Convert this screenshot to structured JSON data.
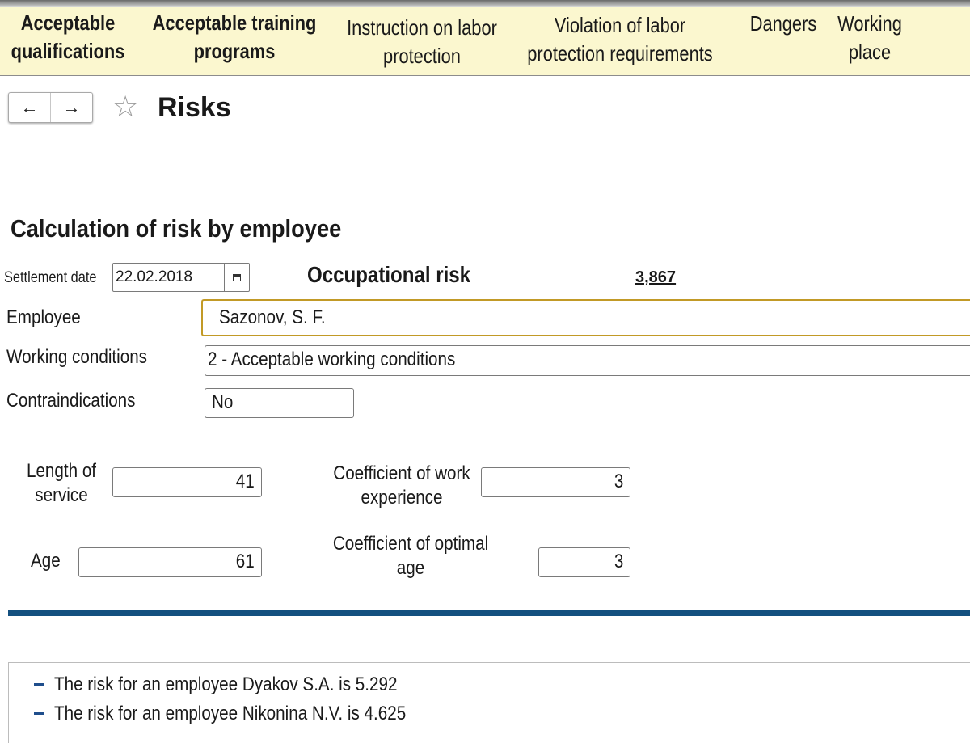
{
  "tabs": [
    {
      "label_1": "Acceptable",
      "label_2": "qualifications"
    },
    {
      "label_1": "Acceptable training",
      "label_2": "programs"
    },
    {
      "label_1": "Instruction on labor",
      "label_2": "protection"
    },
    {
      "label_1": "Violation of labor",
      "label_2": "protection requirements"
    },
    {
      "label_1": "Dangers",
      "label_2": ""
    },
    {
      "label_1": "Working",
      "label_2": "place"
    }
  ],
  "header": {
    "back_glyph": "←",
    "forward_glyph": "→",
    "favorite_glyph": "☆",
    "title": "Risks"
  },
  "form": {
    "section_title": "Calculation of risk by employee",
    "settlement_date_label": "Settlement date",
    "settlement_date_value": "22.02.2018",
    "occupational_risk_label": "Occupational risk",
    "occupational_risk_value": "3,867",
    "employee_label": "Employee",
    "employee_value": "Sazonov, S. F.",
    "working_conditions_label": "Working conditions",
    "working_conditions_value": "2 - Acceptable working conditions",
    "contraindications_label": "Contraindications",
    "contraindications_value": "No",
    "length_of_service_label_1": "Length of",
    "length_of_service_label_2": "service",
    "length_of_service_value": "41",
    "coef_work_experience_label_1": "Coefficient of work",
    "coef_work_experience_label_2": "experience",
    "coef_work_experience_value": "3",
    "age_label": "Age",
    "age_value": "61",
    "coef_optimal_age_label_1": "Coefficient of optimal",
    "coef_optimal_age_label_2": "age",
    "coef_optimal_age_value": "3"
  },
  "messages": [
    "The risk for an employee Dyakov S.A. is 5.292",
    "The risk for an employee Nikonina N.V. is 4.625"
  ],
  "colors": {
    "tabbar_bg": "#fbf7cf",
    "focus_border": "#c29a26",
    "divider": "#14507f",
    "list_bullet": "#1f4e8c"
  },
  "icons": {
    "calendar": "calendar-icon",
    "favorite": "star-icon",
    "back": "arrow-left-icon",
    "forward": "arrow-right-icon",
    "bullet": "dash-icon"
  }
}
